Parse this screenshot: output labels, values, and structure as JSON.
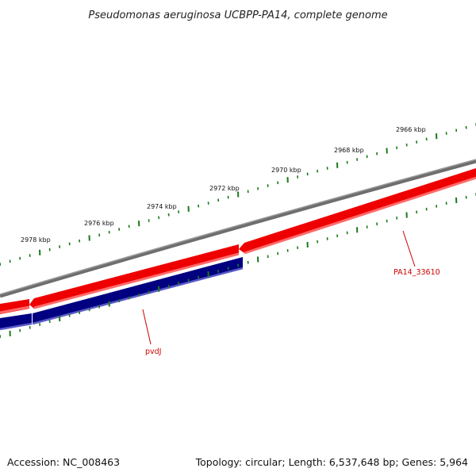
{
  "title": "Pseudomonas aeruginosa UCBPP-PA14, complete genome",
  "footer": {
    "accession": "Accession: NC_008463",
    "summary": "Topology: circular; Length: 6,537,648 bp; Genes: 5,964"
  },
  "ticks": [
    {
      "label": "2978 kbp"
    },
    {
      "label": "2976 kbp"
    },
    {
      "label": "2974 kbp"
    },
    {
      "label": "2972 kbp"
    },
    {
      "label": "2970 kbp"
    },
    {
      "label": "2968 kbp"
    },
    {
      "label": "2966 kbp"
    }
  ],
  "genes": [
    {
      "name": "PA14_33610",
      "strand": "reverse",
      "color": "#cc0000"
    },
    {
      "name": "pvdJ",
      "strand": "forward",
      "color": "#cc0000"
    }
  ],
  "colors": {
    "backbone": "#808080",
    "reverse_cds": "#ee0000",
    "forward_cds": "#000080",
    "ticks": "#1a7a1a"
  }
}
